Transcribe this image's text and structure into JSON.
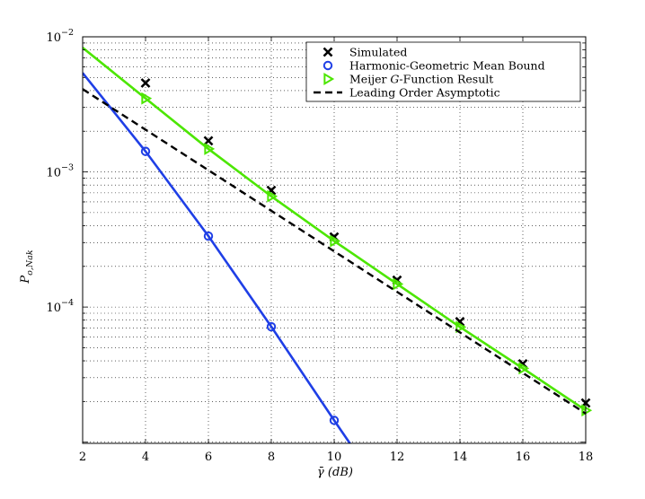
{
  "chart_data": {
    "type": "line",
    "xlabel": "γ̄ (dB)",
    "ylabel": "P_{o,Nak}",
    "x_ticks": [
      2,
      4,
      6,
      8,
      10,
      12,
      14,
      16,
      18
    ],
    "xlim": [
      2,
      18
    ],
    "yscale": "log",
    "ylim": [
      9.8e-06,
      0.01
    ],
    "y_tick_labels": [
      {
        "value": 0.01,
        "base": "10",
        "exp": "−2"
      },
      {
        "value": 0.001,
        "base": "10",
        "exp": "−3"
      },
      {
        "value": 0.0001,
        "base": "10",
        "exp": "−4"
      }
    ],
    "grid": true,
    "legend_position": "top-right",
    "series": [
      {
        "name": "Simulated",
        "style": "marker-x",
        "color": "#000000",
        "x": [
          4,
          6,
          8,
          10,
          12,
          14,
          16,
          18
        ],
        "y": [
          0.00455,
          0.0017,
          0.00073,
          0.00033,
          0.000158,
          7.8e-05,
          3.8e-05,
          1.95e-05
        ]
      },
      {
        "name": "Harmonic-Geometric Mean Bound",
        "style": "line-circle",
        "color": "#1f3fe6",
        "x": [
          2,
          4,
          6,
          8,
          10,
          10.5
        ],
        "y": [
          0.0054,
          0.00142,
          0.000335,
          7.15e-05,
          1.45e-05,
          9.8e-06
        ],
        "marker_x": [
          4,
          6,
          8,
          10
        ]
      },
      {
        "name_prefix": "Meijer ",
        "name_italic": "G",
        "name_suffix": "-Function Result",
        "style": "line-triangle",
        "color": "#4ce600",
        "x": [
          2,
          4,
          6,
          8,
          10,
          12,
          14,
          16,
          18
        ],
        "y": [
          0.0083,
          0.0035,
          0.00148,
          0.00066,
          0.000308,
          0.000148,
          7.12e-05,
          3.52e-05,
          1.72e-05
        ],
        "marker_x": [
          4,
          6,
          8,
          10,
          12,
          14,
          16,
          18
        ]
      },
      {
        "name": "Leading Order Asymptotic",
        "style": "dashed",
        "color": "#000000",
        "x": [
          2,
          18
        ],
        "y": [
          0.0041,
          1.63e-05
        ]
      }
    ]
  }
}
